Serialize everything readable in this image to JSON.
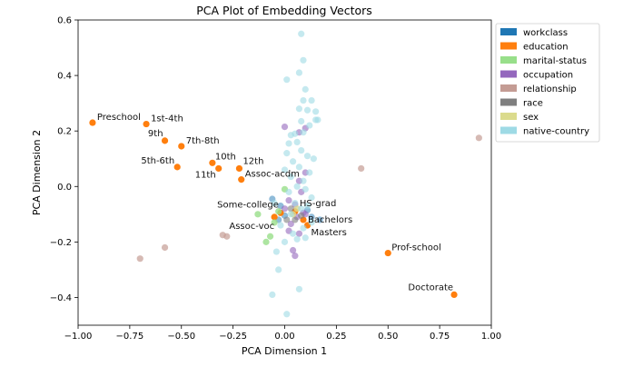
{
  "chart_data": {
    "type": "scatter",
    "title": "PCA Plot of Embedding Vectors",
    "xlabel": "PCA Dimension 1",
    "ylabel": "PCA Dimension 2",
    "xlim": [
      -1.0,
      1.0
    ],
    "ylim": [
      -0.5,
      0.6
    ],
    "xticks": [
      -1.0,
      -0.75,
      -0.5,
      -0.25,
      0.0,
      0.25,
      0.5,
      0.75,
      1.0
    ],
    "xtick_labels": [
      "−1.00",
      "−0.75",
      "−0.50",
      "−0.25",
      "0.00",
      "0.25",
      "0.50",
      "0.75",
      "1.00"
    ],
    "yticks": [
      -0.4,
      -0.2,
      0.0,
      0.2,
      0.4,
      0.6
    ],
    "ytick_labels": [
      "−0.4",
      "−0.2",
      "0.0",
      "0.2",
      "0.4",
      "0.6"
    ],
    "grid": false,
    "legend_position": "right, outside plot",
    "series": [
      {
        "name": "workclass",
        "color": "#1f77b4",
        "alpha": 0.5,
        "points": [
          [
            -0.06,
            -0.045
          ],
          [
            -0.03,
            -0.12
          ],
          [
            0.0,
            -0.105
          ],
          [
            0.11,
            -0.085
          ],
          [
            0.17,
            -0.12
          ],
          [
            0.13,
            -0.11
          ],
          [
            -0.02,
            -0.07
          ]
        ]
      },
      {
        "name": "education",
        "color": "#ff7f0e",
        "alpha": 1.0,
        "points": [
          {
            "x": -0.93,
            "y": 0.23,
            "label": "Preschool"
          },
          {
            "x": -0.67,
            "y": 0.225,
            "label": "1st-4th"
          },
          {
            "x": -0.58,
            "y": 0.165,
            "label": "9th"
          },
          {
            "x": -0.5,
            "y": 0.145,
            "label": "7th-8th"
          },
          {
            "x": -0.52,
            "y": 0.07,
            "label": "5th-6th"
          },
          {
            "x": -0.35,
            "y": 0.085,
            "label": "10th"
          },
          {
            "x": -0.32,
            "y": 0.065,
            "label": "11th"
          },
          {
            "x": -0.22,
            "y": 0.065,
            "label": "12th"
          },
          {
            "x": -0.21,
            "y": 0.025,
            "label": "Assoc-acdm"
          },
          {
            "x": -0.05,
            "y": -0.11,
            "label": "Assoc-voc"
          },
          {
            "x": -0.02,
            "y": -0.095,
            "label": "Some-college"
          },
          {
            "x": 0.05,
            "y": -0.09,
            "label": "HS-grad"
          },
          {
            "x": 0.09,
            "y": -0.12,
            "label": "Bachelors"
          },
          {
            "x": 0.11,
            "y": -0.14,
            "label": "Masters"
          },
          {
            "x": 0.5,
            "y": -0.24,
            "label": "Prof-school"
          },
          {
            "x": 0.82,
            "y": -0.39,
            "label": "Doctorate"
          }
        ]
      },
      {
        "name": "marital-status",
        "color": "#98df8a",
        "alpha": 0.8,
        "points": [
          [
            -0.13,
            -0.1
          ],
          [
            -0.07,
            -0.18
          ],
          [
            -0.09,
            -0.2
          ],
          [
            -0.05,
            -0.13
          ],
          [
            -0.03,
            -0.09
          ],
          [
            0.0,
            -0.01
          ]
        ]
      },
      {
        "name": "occupation",
        "color": "#9467bd",
        "alpha": 0.6,
        "points": [
          [
            0.0,
            0.215
          ],
          [
            0.07,
            0.195
          ],
          [
            0.1,
            0.21
          ],
          [
            0.1,
            0.05
          ],
          [
            0.07,
            0.02
          ],
          [
            0.08,
            -0.02
          ],
          [
            0.02,
            -0.05
          ],
          [
            0.05,
            -0.065
          ],
          [
            0.09,
            -0.095
          ],
          [
            0.06,
            -0.11
          ],
          [
            0.03,
            -0.135
          ],
          [
            0.02,
            -0.16
          ],
          [
            0.07,
            -0.17
          ],
          [
            0.04,
            -0.23
          ],
          [
            0.05,
            -0.25
          ],
          [
            0.1,
            -0.1
          ],
          [
            0.0,
            -0.08
          ]
        ]
      },
      {
        "name": "relationship",
        "color": "#c49c94",
        "alpha": 0.7,
        "points": [
          [
            -0.7,
            -0.26
          ],
          [
            -0.58,
            -0.22
          ],
          [
            -0.3,
            -0.175
          ],
          [
            -0.28,
            -0.18
          ],
          [
            0.37,
            0.065
          ],
          [
            0.94,
            0.175
          ]
        ]
      },
      {
        "name": "race",
        "color": "#7f7f7f",
        "alpha": 0.6,
        "points": [
          [
            0.03,
            -0.08
          ],
          [
            0.05,
            -0.12
          ],
          [
            0.08,
            -0.105
          ],
          [
            0.01,
            -0.12
          ]
        ]
      },
      {
        "name": "sex",
        "color": "#dbdb8d",
        "alpha": 0.8,
        "points": [
          [
            0.06,
            -0.08
          ],
          [
            0.04,
            -0.1
          ]
        ]
      },
      {
        "name": "native-country",
        "color": "#9edae5",
        "alpha": 0.6,
        "points": [
          [
            0.08,
            0.55
          ],
          [
            0.09,
            0.455
          ],
          [
            0.07,
            0.41
          ],
          [
            0.01,
            0.385
          ],
          [
            0.1,
            0.35
          ],
          [
            0.13,
            0.31
          ],
          [
            0.09,
            0.31
          ],
          [
            0.07,
            0.28
          ],
          [
            0.11,
            0.275
          ],
          [
            0.15,
            0.27
          ],
          [
            0.16,
            0.24
          ],
          [
            0.08,
            0.235
          ],
          [
            0.12,
            0.22
          ],
          [
            0.05,
            0.19
          ],
          [
            0.09,
            0.195
          ],
          [
            0.03,
            0.185
          ],
          [
            0.06,
            0.16
          ],
          [
            0.02,
            0.155
          ],
          [
            0.08,
            0.13
          ],
          [
            0.01,
            0.12
          ],
          [
            0.11,
            0.11
          ],
          [
            0.14,
            0.1
          ],
          [
            0.04,
            0.09
          ],
          [
            0.07,
            0.07
          ],
          [
            0.0,
            0.06
          ],
          [
            0.12,
            0.05
          ],
          [
            0.03,
            0.035
          ],
          [
            0.09,
            0.02
          ],
          [
            0.06,
            0.0
          ],
          [
            0.1,
            -0.01
          ],
          [
            0.02,
            -0.02
          ],
          [
            0.13,
            -0.04
          ],
          [
            0.05,
            -0.06
          ],
          [
            0.08,
            -0.08
          ],
          [
            0.11,
            -0.07
          ],
          [
            0.03,
            -0.1
          ],
          [
            0.13,
            -0.13
          ],
          [
            0.09,
            -0.15
          ],
          [
            0.04,
            -0.17
          ],
          [
            0.1,
            -0.185
          ],
          [
            0.06,
            -0.19
          ],
          [
            0.0,
            -0.2
          ],
          [
            -0.02,
            -0.14
          ],
          [
            -0.04,
            -0.235
          ],
          [
            -0.03,
            -0.3
          ],
          [
            -0.06,
            -0.39
          ],
          [
            0.07,
            -0.37
          ],
          [
            0.01,
            -0.46
          ],
          [
            0.15,
            0.24
          ],
          [
            -0.05,
            -0.06
          ]
        ]
      }
    ]
  }
}
